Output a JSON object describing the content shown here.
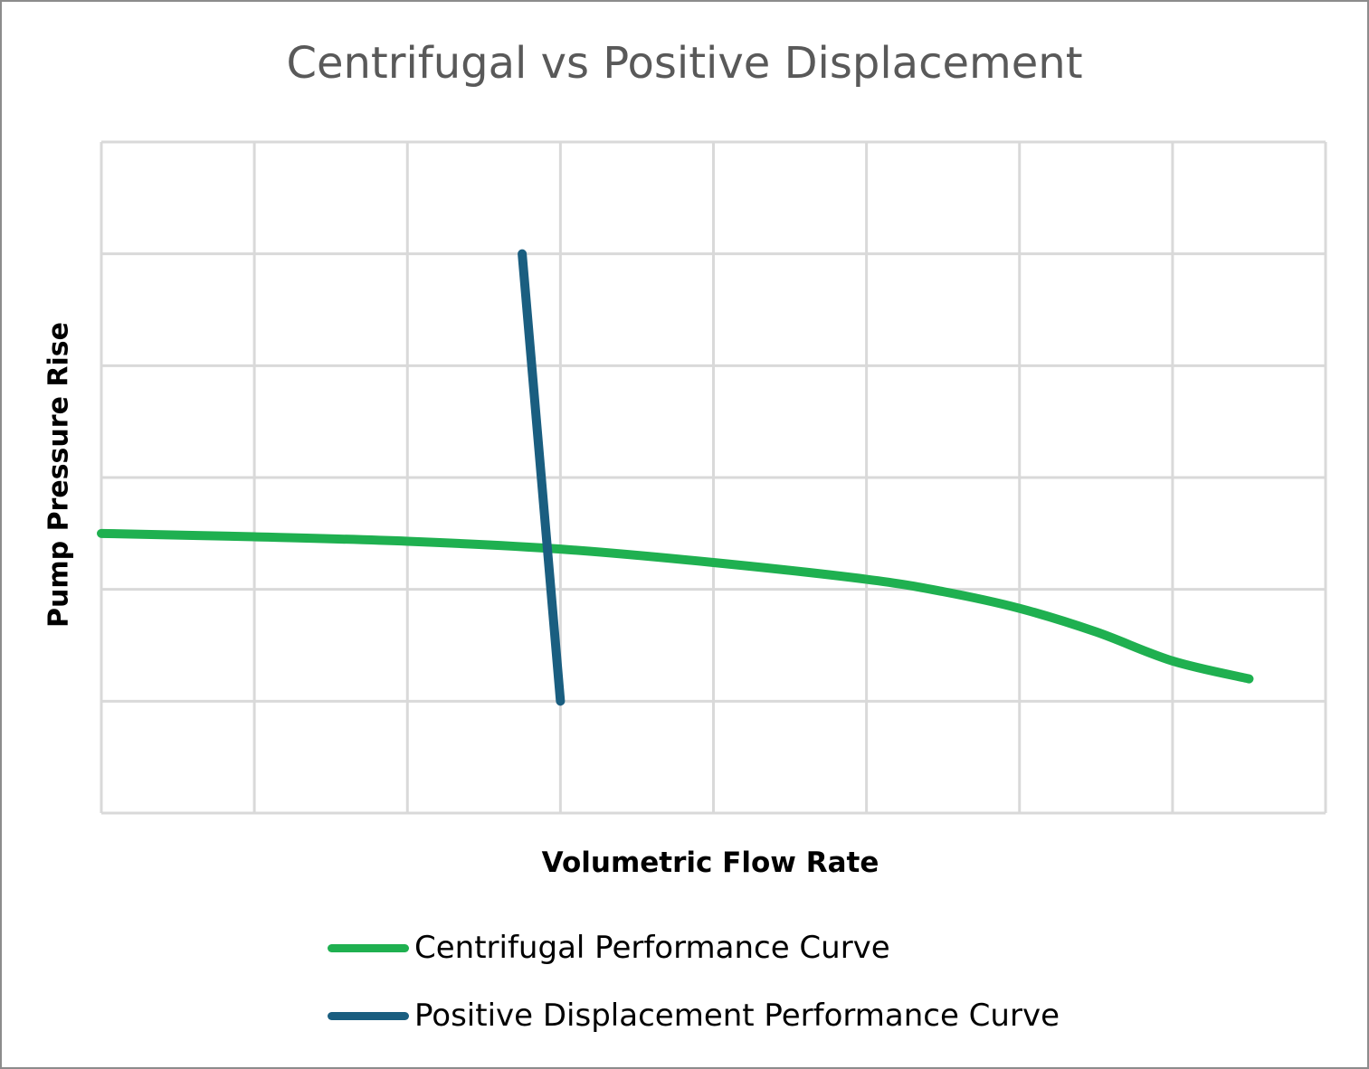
{
  "chart_data": {
    "type": "line",
    "title": "Centrifugal vs Positive Displacement",
    "xlabel": "Volumetric Flow Rate",
    "ylabel": "Pump Pressure Rise",
    "xlim": [
      0,
      8
    ],
    "ylim": [
      0,
      6
    ],
    "grid": true,
    "tick_labels_shown": false,
    "legend_position": "bottom",
    "series": [
      {
        "name": "Centrifugal Performance Curve",
        "color": "#1fb050",
        "x": [
          0,
          1,
          2,
          3,
          4,
          5,
          5.5,
          6,
          6.5,
          7,
          7.5
        ],
        "y": [
          2.5,
          2.47,
          2.43,
          2.36,
          2.24,
          2.09,
          1.98,
          1.83,
          1.62,
          1.36,
          1.2
        ]
      },
      {
        "name": "Positive Displacement Performance Curve",
        "color": "#1a5e80",
        "x": [
          2.75,
          3.0
        ],
        "y": [
          5.0,
          1.0
        ]
      }
    ]
  }
}
